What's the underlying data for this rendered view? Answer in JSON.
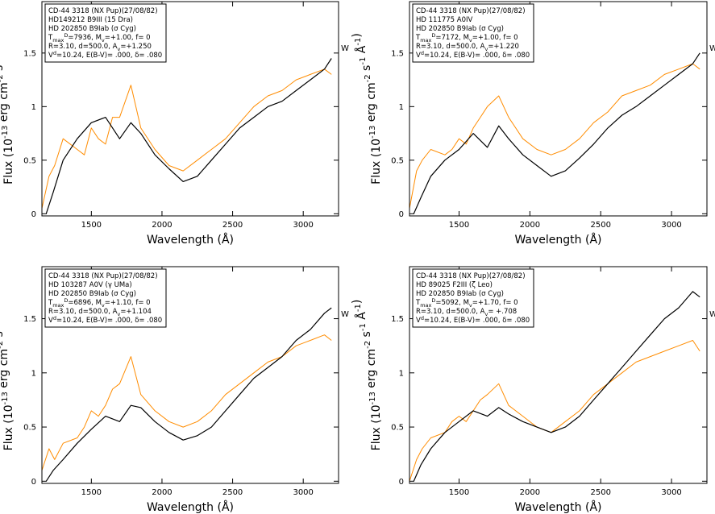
{
  "chart_data": [
    {
      "type": "line",
      "panel": "top-left",
      "xlabel": "Wavelength (Å)",
      "ylabel": "Flux (10^-13 erg cm^-2 s^-1 Å^-1)",
      "xlim": [
        1150,
        3250
      ],
      "ylim": [
        -0.02,
        1.98
      ],
      "xticks": [
        1500,
        2000,
        2500,
        3000
      ],
      "yticks": [
        0,
        0.5,
        1,
        1.5
      ],
      "ytick_labels": [
        "0",
        "0.5",
        "1",
        "1.5"
      ],
      "side_marker": "W",
      "legend": {
        "lines": [
          "CD-44 3318 (NX Pup)(27/08/82)",
          "HD149212 B9III (15 Dra)",
          "HD 202850 B9Iab (σ Cyg)",
          "T_max^D=7936, M_v=+1.00, f= 0",
          "R=3.10, d=500.0, A_v=+1.250",
          "V^d=10.24, E(B-V)= .000, δ= .080"
        ]
      },
      "series": [
        {
          "color": "#ff8c00",
          "x": [
            1150,
            1200,
            1240,
            1300,
            1400,
            1450,
            1500,
            1550,
            1600,
            1650,
            1700,
            1780,
            1850,
            1950,
            2050,
            2150,
            2250,
            2350,
            2450,
            2550,
            2650,
            2750,
            2850,
            2950,
            3050,
            3150,
            3200
          ],
          "y": [
            0.05,
            0.35,
            0.45,
            0.7,
            0.6,
            0.55,
            0.8,
            0.7,
            0.65,
            0.9,
            0.9,
            1.2,
            0.8,
            0.6,
            0.45,
            0.4,
            0.5,
            0.6,
            0.7,
            0.85,
            1.0,
            1.1,
            1.15,
            1.25,
            1.3,
            1.35,
            1.3
          ]
        },
        {
          "color": "#000000",
          "x": [
            1180,
            1230,
            1300,
            1400,
            1500,
            1600,
            1700,
            1780,
            1850,
            1950,
            2050,
            2150,
            2250,
            2350,
            2450,
            2550,
            2650,
            2750,
            2850,
            2950,
            3050,
            3150,
            3200
          ],
          "y": [
            0.0,
            0.2,
            0.5,
            0.7,
            0.85,
            0.9,
            0.7,
            0.85,
            0.75,
            0.55,
            0.42,
            0.3,
            0.35,
            0.5,
            0.65,
            0.8,
            0.9,
            1.0,
            1.05,
            1.15,
            1.25,
            1.35,
            1.45
          ]
        }
      ]
    },
    {
      "type": "line",
      "panel": "top-right",
      "xlabel": "Wavelength (Å)",
      "ylabel": "Flux (10^-13 erg cm^-2 s^-1 Å^-1)",
      "xlim": [
        1150,
        3250
      ],
      "ylim": [
        -0.02,
        1.98
      ],
      "xticks": [
        1500,
        2000,
        2500,
        3000
      ],
      "yticks": [
        0,
        0.5,
        1,
        1.5
      ],
      "ytick_labels": [
        "0",
        "0.5",
        "1",
        "1.5"
      ],
      "side_marker": "W",
      "legend": {
        "lines": [
          "CD-44 3318 (NX Pup)(27/08/82)",
          "HD 111775 A0IV",
          "HD 202850 B9Iab (σ Cyg)",
          "T_max^D=7172, M_v=+1.00, f= 0",
          "R=3.10, d=500.0, A_v=+1.220",
          "V^d=10.24, E(B-V)= .000, δ= .080"
        ]
      },
      "series": [
        {
          "color": "#ff8c00",
          "x": [
            1150,
            1200,
            1240,
            1300,
            1400,
            1450,
            1500,
            1550,
            1600,
            1650,
            1700,
            1780,
            1850,
            1950,
            2050,
            2150,
            2250,
            2350,
            2450,
            2550,
            2650,
            2750,
            2850,
            2950,
            3050,
            3150,
            3200
          ],
          "y": [
            0.05,
            0.4,
            0.5,
            0.6,
            0.55,
            0.6,
            0.7,
            0.65,
            0.8,
            0.9,
            1.0,
            1.1,
            0.9,
            0.7,
            0.6,
            0.55,
            0.6,
            0.7,
            0.85,
            0.95,
            1.1,
            1.15,
            1.2,
            1.3,
            1.35,
            1.4,
            1.35
          ]
        },
        {
          "color": "#000000",
          "x": [
            1180,
            1230,
            1300,
            1400,
            1500,
            1600,
            1700,
            1780,
            1850,
            1950,
            2050,
            2150,
            2250,
            2350,
            2450,
            2550,
            2650,
            2750,
            2850,
            2950,
            3050,
            3150,
            3200
          ],
          "y": [
            0.0,
            0.15,
            0.35,
            0.5,
            0.6,
            0.75,
            0.62,
            0.82,
            0.7,
            0.55,
            0.45,
            0.35,
            0.4,
            0.52,
            0.65,
            0.8,
            0.92,
            1.0,
            1.1,
            1.2,
            1.3,
            1.4,
            1.5
          ]
        }
      ]
    },
    {
      "type": "line",
      "panel": "bottom-left",
      "xlabel": "Wavelength (Å)",
      "ylabel": "Flux (10^-13 erg cm^-2 s^-1 Å^-1)",
      "xlim": [
        1150,
        3250
      ],
      "ylim": [
        -0.02,
        1.98
      ],
      "xticks": [
        1500,
        2000,
        2500,
        3000
      ],
      "yticks": [
        0,
        0.5,
        1,
        1.5
      ],
      "ytick_labels": [
        "0",
        "0.5",
        "1",
        "1.5"
      ],
      "side_marker": "W",
      "legend": {
        "lines": [
          "CD-44 3318 (NX Pup)(27/08/82)",
          "HD 103287 A0V (γ UMa)",
          "HD 202850 B9Iab (σ Cyg)",
          "T_max^D=6896, M_v=+1.10, f= 0",
          "R=3.10, d=500.0, A_v=+1.104",
          "V^d=10.24, E(B-V)= .000, δ= .080"
        ]
      },
      "series": [
        {
          "color": "#ff8c00",
          "x": [
            1150,
            1200,
            1240,
            1300,
            1400,
            1450,
            1500,
            1550,
            1600,
            1650,
            1700,
            1780,
            1850,
            1950,
            2050,
            2150,
            2250,
            2350,
            2450,
            2550,
            2650,
            2750,
            2850,
            2950,
            3050,
            3150,
            3200
          ],
          "y": [
            0.1,
            0.3,
            0.2,
            0.35,
            0.4,
            0.5,
            0.65,
            0.6,
            0.7,
            0.85,
            0.9,
            1.15,
            0.8,
            0.65,
            0.55,
            0.5,
            0.55,
            0.65,
            0.8,
            0.9,
            1.0,
            1.1,
            1.15,
            1.25,
            1.3,
            1.35,
            1.3
          ]
        },
        {
          "color": "#000000",
          "x": [
            1180,
            1230,
            1300,
            1400,
            1500,
            1600,
            1700,
            1780,
            1850,
            1950,
            2050,
            2150,
            2250,
            2350,
            2450,
            2550,
            2650,
            2750,
            2850,
            2950,
            3050,
            3150,
            3200
          ],
          "y": [
            0.0,
            0.1,
            0.2,
            0.35,
            0.48,
            0.6,
            0.55,
            0.7,
            0.68,
            0.55,
            0.45,
            0.38,
            0.42,
            0.5,
            0.65,
            0.8,
            0.95,
            1.05,
            1.15,
            1.3,
            1.4,
            1.55,
            1.6
          ]
        }
      ]
    },
    {
      "type": "line",
      "panel": "bottom-right",
      "xlabel": "Wavelength (Å)",
      "ylabel": "Flux (10^-13 erg cm^-2 s^-1 Å^-1)",
      "xlim": [
        1150,
        3250
      ],
      "ylim": [
        -0.02,
        1.98
      ],
      "xticks": [
        1500,
        2000,
        2500,
        3000
      ],
      "yticks": [
        0,
        0.5,
        1,
        1.5
      ],
      "ytick_labels": [
        "0",
        "0.5",
        "1",
        "1.5"
      ],
      "side_marker": "W",
      "legend": {
        "lines": [
          "CD-44 3318 (NX Pup)(27/08/82)",
          "HD 89025 F2III (ζ Leo)",
          "HD 202850 B9Iab (σ Cyg)",
          "T_max^D=5092, M_v=+1.70, f= 0",
          "R=3.10, d=500.0, A_v= +.708",
          "V^d=10.24, E(B-V)= .000, δ= .080"
        ]
      },
      "series": [
        {
          "color": "#ff8c00",
          "x": [
            1150,
            1200,
            1240,
            1300,
            1400,
            1450,
            1500,
            1550,
            1600,
            1650,
            1700,
            1780,
            1850,
            1950,
            2050,
            2150,
            2250,
            2350,
            2450,
            2550,
            2650,
            2750,
            2850,
            2950,
            3050,
            3150,
            3200
          ],
          "y": [
            0.0,
            0.2,
            0.3,
            0.4,
            0.45,
            0.55,
            0.6,
            0.55,
            0.65,
            0.75,
            0.8,
            0.9,
            0.7,
            0.6,
            0.5,
            0.45,
            0.55,
            0.65,
            0.8,
            0.9,
            1.0,
            1.1,
            1.15,
            1.2,
            1.25,
            1.3,
            1.2
          ]
        },
        {
          "color": "#000000",
          "x": [
            1180,
            1230,
            1300,
            1400,
            1500,
            1600,
            1700,
            1780,
            1850,
            1950,
            2050,
            2150,
            2250,
            2350,
            2450,
            2550,
            2650,
            2750,
            2850,
            2950,
            3050,
            3150,
            3200
          ],
          "y": [
            0.0,
            0.15,
            0.3,
            0.45,
            0.55,
            0.65,
            0.6,
            0.68,
            0.62,
            0.55,
            0.5,
            0.45,
            0.5,
            0.6,
            0.75,
            0.9,
            1.05,
            1.2,
            1.35,
            1.5,
            1.6,
            1.75,
            1.7
          ]
        }
      ]
    }
  ]
}
